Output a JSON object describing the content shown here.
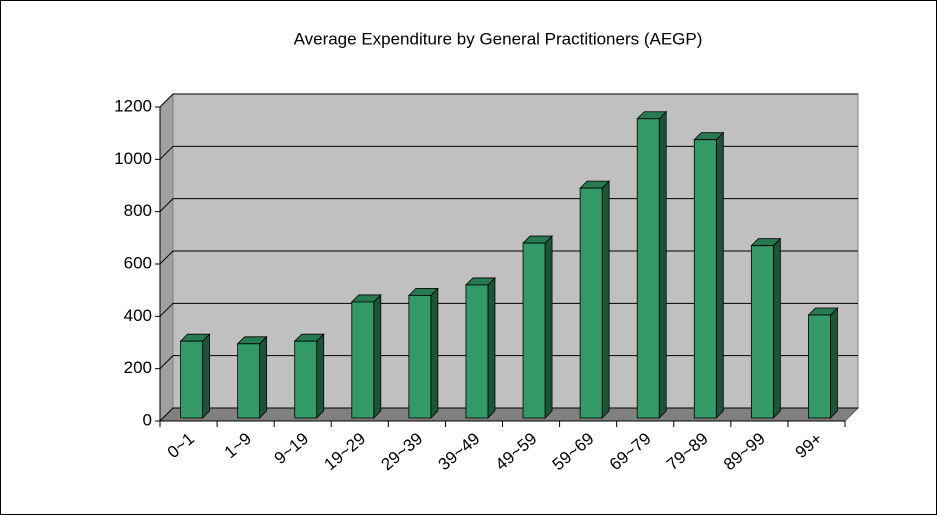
{
  "chart_data": {
    "type": "bar3d",
    "title": "Average Expenditure by General Practitioners (AEGP)",
    "categories": [
      "0~1",
      "1~9",
      "9~19",
      "19~29",
      "29~39",
      "39~49",
      "49~59",
      "59~69",
      "69~79",
      "79~89",
      "89~99",
      "99+"
    ],
    "values": [
      305,
      295,
      305,
      455,
      480,
      520,
      680,
      890,
      1155,
      1075,
      670,
      405
    ],
    "color": "#339966",
    "ylim": [
      0,
      1200
    ],
    "yticks": [
      0,
      200,
      400,
      600,
      800,
      1000,
      1200
    ],
    "grid": true
  }
}
